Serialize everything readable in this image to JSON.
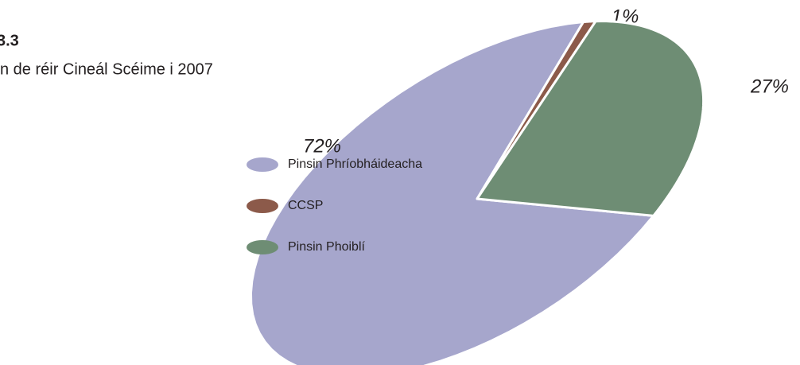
{
  "chart_data": {
    "type": "pie",
    "title": "3.3",
    "subtitle": "n de réir Cineál Scéime i 2007",
    "categories": [
      "Pinsin Phríobháideacha",
      "CCSP",
      "Pinsin Phoiblí"
    ],
    "values": [
      72,
      1,
      27
    ],
    "value_labels": [
      "72%",
      "1%",
      "27%"
    ],
    "colors": [
      "#a6a6cc",
      "#8c5a4a",
      "#6e8d74"
    ],
    "legend": "left"
  }
}
